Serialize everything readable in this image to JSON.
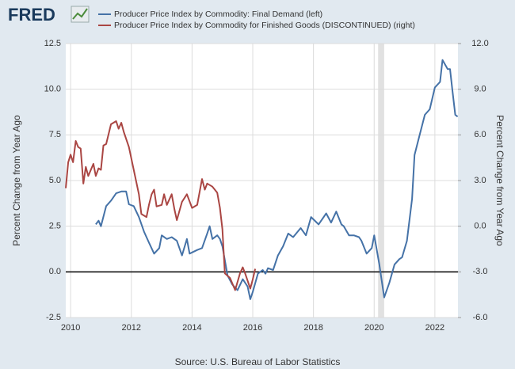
{
  "chart_data": {
    "type": "line",
    "logo": "FRED",
    "source": "Source: U.S. Bureau of Labor Statistics",
    "ylabel": "Percent Change from Year Ago",
    "y2label": "Percent Change from Year Ago",
    "xlim": [
      2009.84,
      2022.76
    ],
    "xticks": [
      2010,
      2012,
      2014,
      2016,
      2018,
      2020,
      2022
    ],
    "ylim": [
      -2.5,
      12.5
    ],
    "yticks": [
      {
        "value": -2.5,
        "label": "-2.5"
      },
      {
        "value": 0,
        "label": "0.0"
      },
      2.5,
      {
        "value": 5,
        "label": "5.0"
      },
      7.5,
      {
        "value": 10,
        "label": "10.0"
      },
      12.5
    ],
    "y2lim": [
      -6,
      12
    ],
    "y2ticks": [
      {
        "value": -6,
        "label": "-6.0"
      },
      {
        "value": -3,
        "label": "-3.0"
      },
      {
        "value": 0,
        "label": "0.0"
      },
      {
        "value": 3,
        "label": "3.0"
      },
      {
        "value": 6,
        "label": "6.0"
      },
      {
        "value": 9,
        "label": "9.0"
      },
      {
        "value": 12,
        "label": "12.0"
      }
    ],
    "grid": true,
    "reference_line": 0,
    "shading": [
      [
        2020.13,
        2020.33
      ]
    ],
    "series": [
      {
        "name": "Producer Price Index by Commodity: Final Demand (left)",
        "color": "#4572a7",
        "x": [
          2010.83,
          2010.92,
          2011.0,
          2011.17,
          2011.33,
          2011.5,
          2011.67,
          2011.83,
          2011.92,
          2012.08,
          2012.25,
          2012.42,
          2012.58,
          2012.75,
          2012.92,
          2013.0,
          2013.17,
          2013.33,
          2013.5,
          2013.67,
          2013.83,
          2013.92,
          2014.17,
          2014.33,
          2014.5,
          2014.58,
          2014.67,
          2014.83,
          2014.92,
          2015.0,
          2015.17,
          2015.33,
          2015.5,
          2015.67,
          2015.83,
          2015.92,
          2016.0,
          2016.17,
          2016.33,
          2016.42,
          2016.5,
          2016.67,
          2016.83,
          2017.0,
          2017.17,
          2017.33,
          2017.58,
          2017.75,
          2017.92,
          2018.17,
          2018.42,
          2018.58,
          2018.75,
          2018.92,
          2019.0,
          2019.17,
          2019.33,
          2019.5,
          2019.58,
          2019.75,
          2019.92,
          2020.0,
          2020.17,
          2020.33,
          2020.5,
          2020.67,
          2020.83,
          2020.92,
          2021.08,
          2021.25,
          2021.33,
          2021.5,
          2021.67,
          2021.83,
          2022.0,
          2022.17,
          2022.25,
          2022.42,
          2022.5,
          2022.58,
          2022.67,
          2022.75
        ],
        "values": [
          2.6,
          2.8,
          2.5,
          3.6,
          3.9,
          4.3,
          4.4,
          4.4,
          3.7,
          3.6,
          3.0,
          2.2,
          1.6,
          1.0,
          1.3,
          2.0,
          1.8,
          1.9,
          1.7,
          0.9,
          1.8,
          1.0,
          1.2,
          1.3,
          2.1,
          2.5,
          1.8,
          2.0,
          1.8,
          1.4,
          -0.2,
          -0.7,
          -1.0,
          -0.4,
          -0.8,
          -1.5,
          -1.1,
          -0.1,
          0.1,
          -0.1,
          0.2,
          0.1,
          0.9,
          1.4,
          2.1,
          1.9,
          2.4,
          2.0,
          3.0,
          2.6,
          3.2,
          2.7,
          3.3,
          2.6,
          2.5,
          2.0,
          2.0,
          1.9,
          1.7,
          1.0,
          1.3,
          2.0,
          0.4,
          -1.4,
          -0.6,
          0.4,
          0.7,
          0.8,
          1.7,
          4.0,
          6.4,
          7.5,
          8.6,
          8.9,
          10.1,
          10.4,
          11.6,
          11.1,
          11.1,
          9.9,
          8.6,
          8.5
        ]
      },
      {
        "name": "Producer Price Index by Commodity for Finished Goods (DISCONTINUED) (right)",
        "color": "#aa4643",
        "axis": "y2",
        "x": [
          2009.84,
          2009.92,
          2010.0,
          2010.08,
          2010.17,
          2010.25,
          2010.33,
          2010.42,
          2010.5,
          2010.58,
          2010.75,
          2010.83,
          2010.92,
          2011.0,
          2011.08,
          2011.17,
          2011.33,
          2011.5,
          2011.58,
          2011.67,
          2011.75,
          2011.92,
          2012.08,
          2012.25,
          2012.33,
          2012.5,
          2012.58,
          2012.67,
          2012.75,
          2012.83,
          2013.0,
          2013.08,
          2013.17,
          2013.33,
          2013.42,
          2013.5,
          2013.67,
          2013.83,
          2014.0,
          2014.17,
          2014.33,
          2014.42,
          2014.5,
          2014.67,
          2014.83,
          2014.92,
          2015.0,
          2015.08,
          2015.25,
          2015.42,
          2015.58,
          2015.67,
          2015.75,
          2015.92,
          2016.0,
          2016.08
        ],
        "values": [
          2.5,
          4.2,
          4.7,
          4.2,
          5.6,
          5.2,
          5.1,
          2.8,
          3.9,
          3.3,
          4.1,
          3.3,
          3.8,
          3.7,
          5.3,
          5.4,
          6.7,
          6.9,
          6.4,
          6.8,
          6.2,
          5.2,
          3.7,
          2.1,
          0.8,
          0.6,
          1.4,
          2.1,
          2.4,
          1.3,
          1.4,
          2.1,
          1.4,
          2.1,
          1.1,
          0.4,
          1.6,
          2.1,
          1.2,
          1.4,
          3.1,
          2.4,
          2.8,
          2.6,
          2.2,
          1.2,
          -0.2,
          -3.1,
          -3.4,
          -4.2,
          -3.1,
          -2.7,
          -3.1,
          -4.1,
          -3.5,
          -2.8
        ]
      }
    ]
  }
}
